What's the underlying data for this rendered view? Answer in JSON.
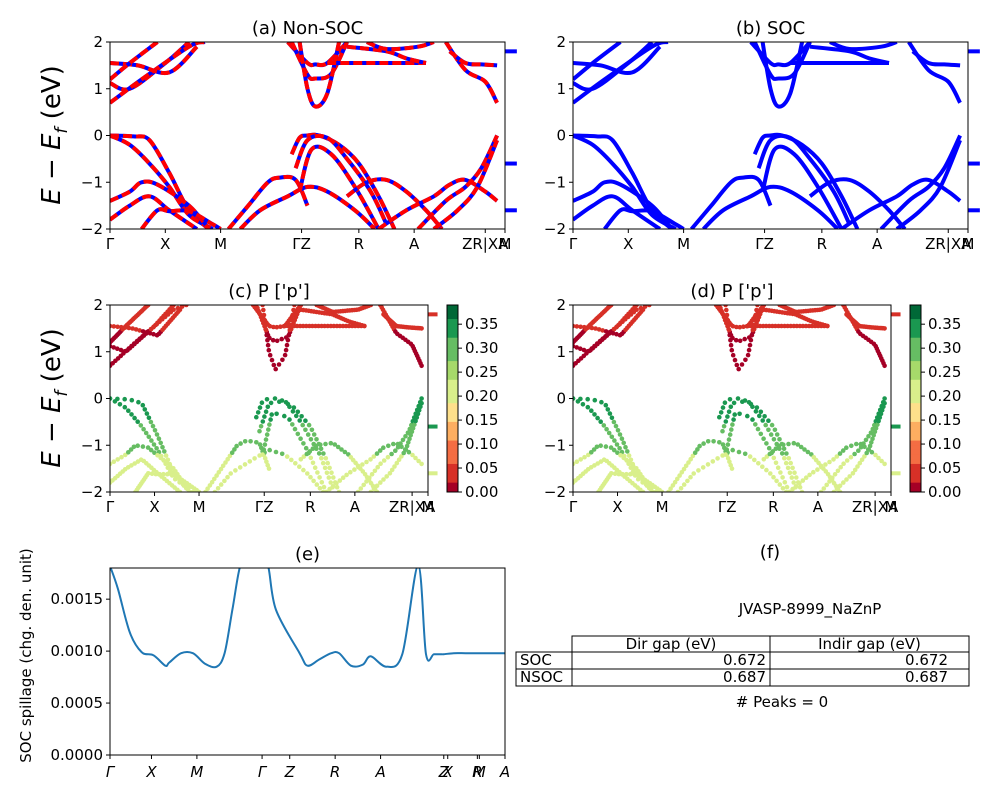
{
  "figure": {
    "material_title": "JVASP-8999_NaZnP",
    "peaks_text": "# Peaks = 0"
  },
  "colors": {
    "nonsoc_red": "#ff0000",
    "nonsoc_blue": "#0000ff",
    "soc_blue": "#0000ff",
    "spillage_line": "#1f77b4",
    "colormap": [
      "#a50026",
      "#d73027",
      "#f46d43",
      "#fdae61",
      "#fee08b",
      "#d9ef8b",
      "#a6d96a",
      "#66bd63",
      "#1a9850",
      "#006837"
    ]
  },
  "panels": {
    "a": {
      "title": "(a) Non-SOC",
      "ylabel": "E − E",
      "ylabel_sub": "f",
      "ylabel_unit": " (eV)"
    },
    "b": {
      "title": "(b) SOC"
    },
    "c": {
      "title": "(c)  P ['p']",
      "ylabel": "E − E",
      "ylabel_sub": "f",
      "ylabel_unit": " (eV)"
    },
    "d": {
      "title": "(d) P ['p']"
    },
    "e": {
      "title": "(e)",
      "ylabel": "SOC spillage (chg. den. unit)"
    },
    "f": {
      "title": "(f)"
    }
  },
  "chart_data": [
    {
      "panel": "a",
      "type": "line",
      "title": "(a) Non-SOC",
      "ylabel": "E − E_f (eV)",
      "ylim": [
        -2,
        2
      ],
      "yticks": [
        "2",
        "1",
        "0",
        "−1",
        "−2"
      ],
      "xticks": [
        "Γ",
        "X",
        "M",
        "ΓZ",
        "R",
        "A",
        "ZR|XA",
        "M"
      ],
      "style": "red/blue dashed",
      "bands": [
        [
          [
            0,
            1.12
          ],
          [
            0.05,
            1.0
          ],
          [
            0.14,
            1.55
          ],
          [
            0.2,
            2.0
          ]
        ],
        [
          [
            0,
            0.7
          ],
          [
            0.08,
            1.2
          ],
          [
            0.2,
            1.9
          ],
          [
            0.24,
            2.0
          ]
        ],
        [
          [
            0,
            1.55
          ],
          [
            0.07,
            1.5
          ],
          [
            0.15,
            1.35
          ],
          [
            0.22,
            1.9
          ]
        ],
        [
          [
            0,
            1.2
          ],
          [
            0.05,
            1.55
          ],
          [
            0.12,
            2.0
          ]
        ],
        [
          [
            0.45,
            2.0
          ],
          [
            0.5,
            1.55
          ],
          [
            0.52,
            1.52
          ],
          [
            0.55,
            1.55
          ],
          [
            0.6,
            2.0
          ]
        ],
        [
          [
            0.46,
            2.0
          ],
          [
            0.5,
            1.3
          ],
          [
            0.52,
            1.22
          ],
          [
            0.56,
            1.32
          ],
          [
            0.6,
            2.0
          ]
        ],
        [
          [
            0.48,
            2.0
          ],
          [
            0.5,
            1.0
          ],
          [
            0.52,
            0.62
          ],
          [
            0.55,
            0.9
          ],
          [
            0.58,
            2.0
          ]
        ],
        [
          [
            0.55,
            1.55
          ],
          [
            0.6,
            1.55
          ],
          [
            0.7,
            1.55
          ],
          [
            0.8,
            1.55
          ]
        ],
        [
          [
            0.6,
            1.9
          ],
          [
            0.7,
            1.8
          ],
          [
            0.75,
            1.65
          ],
          [
            0.8,
            1.55
          ]
        ],
        [
          [
            0.85,
            2.0
          ],
          [
            0.9,
            1.4
          ],
          [
            0.95,
            1.15
          ],
          [
            0.98,
            0.7
          ]
        ],
        [
          [
            0.86,
            1.8
          ],
          [
            0.9,
            1.55
          ],
          [
            0.94,
            1.52
          ],
          [
            0.98,
            1.5
          ]
        ],
        [
          [
            0.65,
            2.0
          ],
          [
            0.7,
            1.85
          ],
          [
            0.78,
            1.9
          ],
          [
            0.82,
            2.0
          ]
        ],
        [
          [
            0,
            0.0
          ],
          [
            0.06,
            -0.02
          ],
          [
            0.1,
            -0.1
          ],
          [
            0.15,
            -0.8
          ],
          [
            0.2,
            -1.6
          ],
          [
            0.25,
            -2.0
          ]
        ],
        [
          [
            0,
            0.0
          ],
          [
            0.05,
            -0.2
          ],
          [
            0.1,
            -0.6
          ],
          [
            0.15,
            -1.1
          ],
          [
            0.2,
            -1.7
          ],
          [
            0.26,
            -2.0
          ]
        ],
        [
          [
            0,
            -1.4
          ],
          [
            0.05,
            -1.2
          ],
          [
            0.08,
            -1.0
          ],
          [
            0.12,
            -1.05
          ],
          [
            0.2,
            -1.5
          ],
          [
            0.25,
            -2.0
          ]
        ],
        [
          [
            0,
            -1.8
          ],
          [
            0.05,
            -1.5
          ],
          [
            0.1,
            -1.3
          ],
          [
            0.15,
            -1.6
          ],
          [
            0.22,
            -2.0
          ]
        ],
        [
          [
            0.08,
            -2.0
          ],
          [
            0.12,
            -1.6
          ],
          [
            0.15,
            -1.62
          ],
          [
            0.2,
            -1.62
          ],
          [
            0.26,
            -1.9
          ],
          [
            0.28,
            -2.0
          ]
        ],
        [
          [
            0.3,
            -2.0
          ],
          [
            0.35,
            -1.5
          ],
          [
            0.4,
            -1.0
          ],
          [
            0.43,
            -0.9
          ],
          [
            0.47,
            -0.95
          ],
          [
            0.5,
            -1.5
          ]
        ],
        [
          [
            0.33,
            -2.0
          ],
          [
            0.38,
            -1.6
          ],
          [
            0.45,
            -1.3
          ],
          [
            0.5,
            -1.1
          ],
          [
            0.55,
            -1.2
          ],
          [
            0.62,
            -1.6
          ],
          [
            0.67,
            -2.0
          ]
        ],
        [
          [
            0.46,
            -0.4
          ],
          [
            0.48,
            -0.05
          ],
          [
            0.5,
            0.0
          ],
          [
            0.53,
            0.0
          ],
          [
            0.58,
            -0.2
          ],
          [
            0.63,
            -0.6
          ],
          [
            0.68,
            -1.3
          ],
          [
            0.72,
            -2.0
          ]
        ],
        [
          [
            0.47,
            -0.7
          ],
          [
            0.5,
            -0.1
          ],
          [
            0.55,
            -0.05
          ],
          [
            0.6,
            -0.5
          ],
          [
            0.66,
            -1.2
          ],
          [
            0.7,
            -1.9
          ]
        ],
        [
          [
            0.48,
            -1.2
          ],
          [
            0.51,
            -0.3
          ],
          [
            0.56,
            -0.4
          ],
          [
            0.62,
            -1.1
          ],
          [
            0.68,
            -2.0
          ]
        ],
        [
          [
            0.6,
            -1.3
          ],
          [
            0.65,
            -1.0
          ],
          [
            0.7,
            -0.95
          ],
          [
            0.75,
            -1.2
          ],
          [
            0.8,
            -1.6
          ],
          [
            0.84,
            -2.0
          ]
        ],
        [
          [
            0.68,
            -2.0
          ],
          [
            0.75,
            -1.6
          ],
          [
            0.82,
            -1.3
          ],
          [
            0.86,
            -1.05
          ],
          [
            0.9,
            -0.95
          ],
          [
            0.95,
            -1.2
          ],
          [
            0.98,
            -1.4
          ]
        ],
        [
          [
            0.78,
            -2.0
          ],
          [
            0.85,
            -1.4
          ],
          [
            0.9,
            -1.1
          ],
          [
            0.94,
            -0.7
          ],
          [
            0.98,
            0.0
          ]
        ],
        [
          [
            0.82,
            -2.0
          ],
          [
            0.88,
            -1.6
          ],
          [
            0.93,
            -1.1
          ],
          [
            0.98,
            -0.1
          ]
        ]
      ],
      "segments": [
        [
          [
            1.0,
            1.8
          ],
          [
            1.03,
            1.8
          ]
        ],
        [
          [
            1.0,
            -0.6
          ],
          [
            1.03,
            -0.6
          ]
        ],
        [
          [
            1.0,
            -1.6
          ],
          [
            1.03,
            -1.6
          ]
        ]
      ]
    },
    {
      "panel": "b",
      "type": "line",
      "title": "(b) SOC",
      "ylim": [
        -2,
        2
      ],
      "yticks": [
        "2",
        "1",
        "0",
        "−1",
        "−2"
      ],
      "xticks": [
        "Γ",
        "X",
        "M",
        "ΓZ",
        "R",
        "A",
        "ZR|XA",
        "M"
      ],
      "style": "blue solid",
      "same_bands_as": "a"
    },
    {
      "panel": "c",
      "type": "scatter",
      "title": "(c)  P ['p']",
      "ylabel": "E − E_f (eV)",
      "ylim": [
        -2,
        2
      ],
      "yticks": [
        "2",
        "1",
        "0",
        "−1",
        "−2"
      ],
      "xticks": [
        "Γ",
        "X",
        "M",
        "ΓZ",
        "R",
        "A",
        "ZR|XA",
        "M"
      ],
      "colorbar": {
        "range": [
          0.0,
          0.39
        ],
        "ticks": [
          "0.35",
          "0.30",
          "0.25",
          "0.20",
          "0.15",
          "0.10",
          "0.05",
          "0.00"
        ]
      },
      "same_bands_as": "a",
      "projection_rule": "valence bands (E<=0) high weight; conduction bands low weight"
    },
    {
      "panel": "d",
      "type": "scatter",
      "title": "(d) P ['p']",
      "ylim": [
        -2,
        2
      ],
      "yticks": [
        "2",
        "1",
        "0",
        "−1",
        "−2"
      ],
      "xticks": [
        "Γ",
        "X",
        "M",
        "ΓZ",
        "R",
        "A",
        "ZR|XA",
        "M"
      ],
      "colorbar": {
        "range": [
          0.0,
          0.39
        ],
        "ticks": [
          "0.35",
          "0.30",
          "0.25",
          "0.20",
          "0.15",
          "0.10",
          "0.05",
          "0.00"
        ]
      },
      "same_bands_as": "a"
    },
    {
      "panel": "e",
      "type": "line",
      "title": "(e)",
      "ylabel": "SOC spillage (chg. den. unit)",
      "ylim": [
        0,
        0.0018
      ],
      "yticks": [
        "0.0015",
        "0.0010",
        "0.0005",
        "0.0000"
      ],
      "xticks": [
        "Γ",
        "X",
        "M",
        "Γ",
        "Z",
        "R",
        "A",
        "Z",
        "X",
        "R",
        "M",
        "A"
      ],
      "x": [
        0,
        0.02,
        0.05,
        0.08,
        0.11,
        0.14,
        0.15,
        0.18,
        0.21,
        0.24,
        0.27,
        0.29,
        0.31,
        0.33,
        0.35,
        0.38,
        0.4,
        0.42,
        0.48,
        0.5,
        0.53,
        0.56,
        0.58,
        0.61,
        0.64,
        0.66,
        0.7,
        0.74,
        0.78,
        0.8,
        0.82,
        0.84,
        0.845,
        0.87,
        0.9,
        0.93,
        0.96,
        1.0
      ],
      "values": [
        0.00182,
        0.0016,
        0.00118,
        0.00099,
        0.00096,
        0.00086,
        0.00089,
        0.00098,
        0.00098,
        0.00088,
        0.00085,
        0.00098,
        0.0014,
        0.00182,
        0.00182,
        0.00182,
        0.00182,
        0.0014,
        0.00098,
        0.00086,
        0.00092,
        0.00098,
        0.00098,
        0.00086,
        0.00087,
        0.00095,
        0.00085,
        0.00097,
        0.00182,
        0.00097,
        0.00097,
        0.00097,
        0.00097,
        0.00098,
        0.00098,
        0.00098,
        0.00098,
        0.00098
      ]
    },
    {
      "panel": "f",
      "type": "table",
      "title": "(f)",
      "caption": "JVASP-8999_NaZnP",
      "columns": [
        "Dir gap (eV)",
        "Indir gap (eV)"
      ],
      "rows": [
        {
          "label": "SOC",
          "values": [
            "0.672",
            "0.672"
          ]
        },
        {
          "label": "NSOC",
          "values": [
            "0.687",
            "0.687"
          ]
        }
      ],
      "footer": "# Peaks = 0"
    }
  ]
}
